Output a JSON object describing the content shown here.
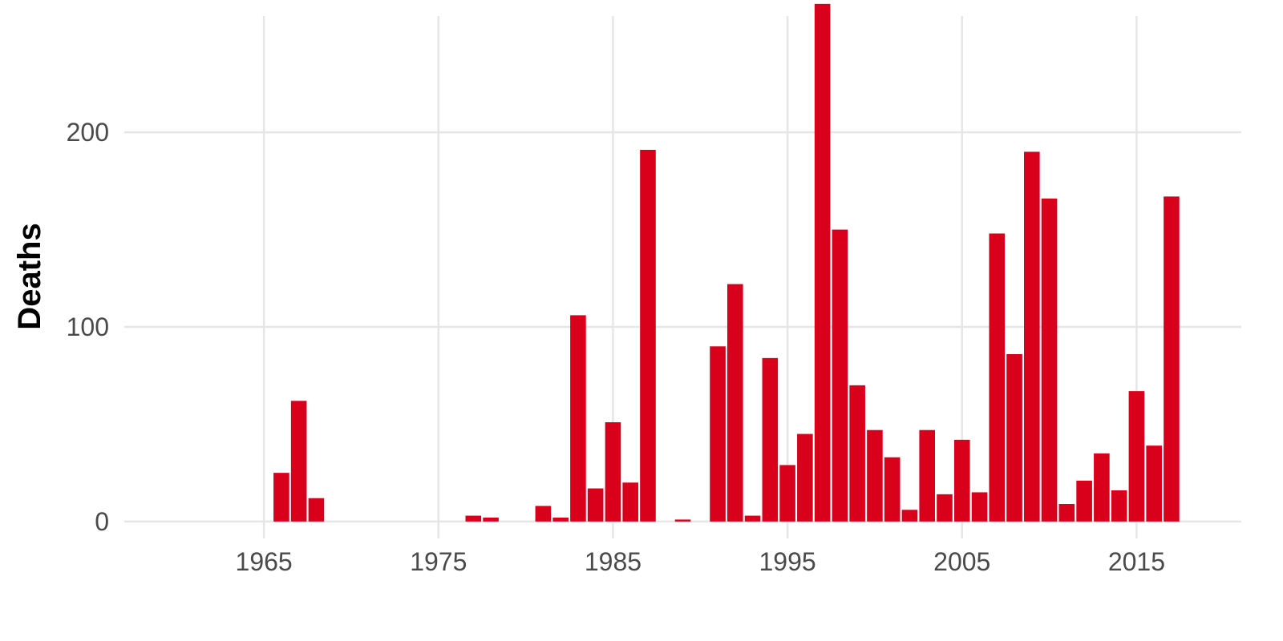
{
  "chart_data": {
    "type": "bar",
    "title": "",
    "xlabel": "",
    "ylabel": "Deaths",
    "xlim": [
      1957,
      2021
    ],
    "ylim": [
      -12,
      268
    ],
    "x_ticks": [
      1965,
      1975,
      1985,
      1995,
      2005,
      2015
    ],
    "y_ticks": [
      0,
      100,
      200
    ],
    "grid": true,
    "bar_color": "#d9001b",
    "data": [
      {
        "year": 1966,
        "value": 25
      },
      {
        "year": 1967,
        "value": 62
      },
      {
        "year": 1968,
        "value": 12
      },
      {
        "year": 1977,
        "value": 3
      },
      {
        "year": 1978,
        "value": 2
      },
      {
        "year": 1981,
        "value": 8
      },
      {
        "year": 1982,
        "value": 2
      },
      {
        "year": 1983,
        "value": 106
      },
      {
        "year": 1984,
        "value": 17
      },
      {
        "year": 1985,
        "value": 51
      },
      {
        "year": 1986,
        "value": 20
      },
      {
        "year": 1987,
        "value": 191
      },
      {
        "year": 1989,
        "value": 1
      },
      {
        "year": 1991,
        "value": 90
      },
      {
        "year": 1992,
        "value": 122
      },
      {
        "year": 1993,
        "value": 3
      },
      {
        "year": 1994,
        "value": 84
      },
      {
        "year": 1995,
        "value": 29
      },
      {
        "year": 1996,
        "value": 45
      },
      {
        "year": 1997,
        "value": 266
      },
      {
        "year": 1998,
        "value": 150
      },
      {
        "year": 1999,
        "value": 70
      },
      {
        "year": 2000,
        "value": 47
      },
      {
        "year": 2001,
        "value": 33
      },
      {
        "year": 2002,
        "value": 6
      },
      {
        "year": 2003,
        "value": 47
      },
      {
        "year": 2004,
        "value": 14
      },
      {
        "year": 2005,
        "value": 42
      },
      {
        "year": 2006,
        "value": 15
      },
      {
        "year": 2007,
        "value": 148
      },
      {
        "year": 2008,
        "value": 86
      },
      {
        "year": 2009,
        "value": 190
      },
      {
        "year": 2010,
        "value": 166
      },
      {
        "year": 2011,
        "value": 9
      },
      {
        "year": 2012,
        "value": 21
      },
      {
        "year": 2013,
        "value": 35
      },
      {
        "year": 2014,
        "value": 16
      },
      {
        "year": 2015,
        "value": 67
      },
      {
        "year": 2016,
        "value": 39
      },
      {
        "year": 2017,
        "value": 167
      }
    ]
  }
}
